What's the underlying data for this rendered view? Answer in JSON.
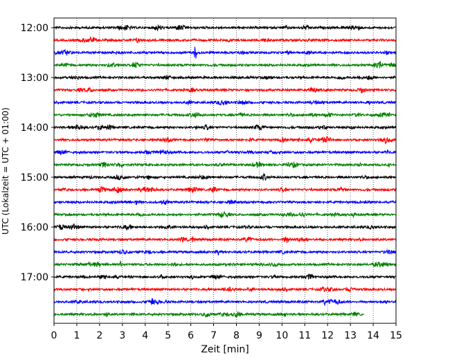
{
  "chart_data": {
    "type": "line",
    "subtype": "helicorder",
    "xlabel": "Zeit  [min]",
    "ylabel": "UTC (Lokalzeit = UTC + 01:00)",
    "xlim": [
      0,
      15
    ],
    "x_ticks": [
      "0",
      "1",
      "2",
      "3",
      "4",
      "5",
      "6",
      "7",
      "8",
      "9",
      "10",
      "11",
      "12",
      "13",
      "14",
      "15"
    ],
    "y_tick_labels": [
      "12:00",
      "13:00",
      "14:00",
      "15:00",
      "16:00",
      "17:00"
    ],
    "y_tick_rows": [
      0,
      4,
      8,
      12,
      16,
      20
    ],
    "grid": "vertical-dotted",
    "colors": [
      "#000000",
      "#ff0000",
      "#0000ff",
      "#008000"
    ],
    "row_count": 24,
    "last_row_end_min": 13.6,
    "events": [
      {
        "row": 2,
        "x": 6.2,
        "amplitude": "high"
      },
      {
        "row": 12,
        "x": 9.2,
        "amplitude": "medium"
      },
      {
        "row": 13,
        "x": 7.0,
        "amplitude": "medium"
      },
      {
        "row": 5,
        "x": 13.5,
        "amplitude": "medium"
      },
      {
        "row": 9,
        "x": 12.0,
        "amplitude": "medium"
      },
      {
        "row": 17,
        "x": 10.2,
        "amplitude": "medium"
      },
      {
        "row": 22,
        "x": 4.3,
        "amplitude": "medium"
      }
    ]
  }
}
